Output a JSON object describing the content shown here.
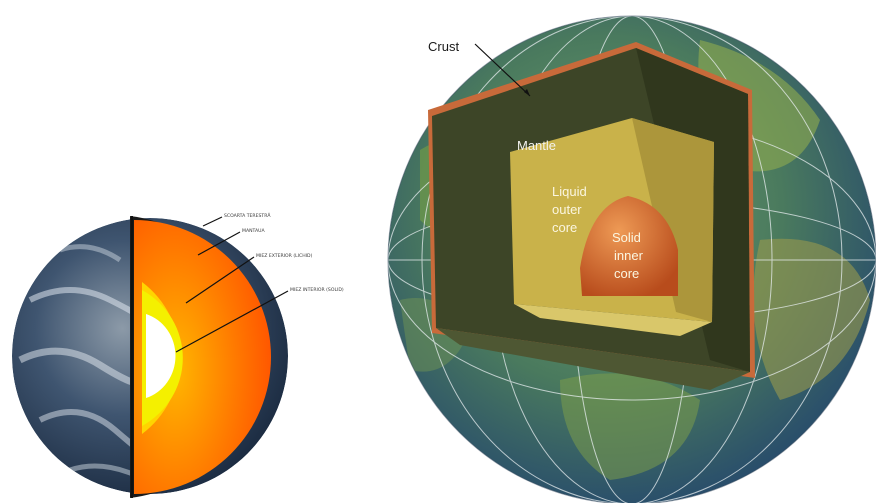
{
  "left_diagram": {
    "labels": [
      "SCOARTA TERESTRĂ",
      "MANTAUA",
      "MIEZ EXTERIOR (LICHID)",
      "MIEZ INTERIOR (SOLID)"
    ]
  },
  "right_diagram": {
    "crust": "Crust",
    "mantle": "Mantle",
    "outer_core": [
      "Liquid",
      "outer",
      "core"
    ],
    "inner_core": [
      "Solid",
      "inner",
      "core"
    ]
  },
  "colors": {
    "ocean": "#2f5a86",
    "crust_line": "#c86a3a",
    "mantle": "#3d4527",
    "outer_core": "#c9b24a",
    "inner_core": "#cc6a2c",
    "left_crust": "#ff5a00",
    "left_outer_core": "#f4f000",
    "left_inner_core": "#ffffff"
  }
}
